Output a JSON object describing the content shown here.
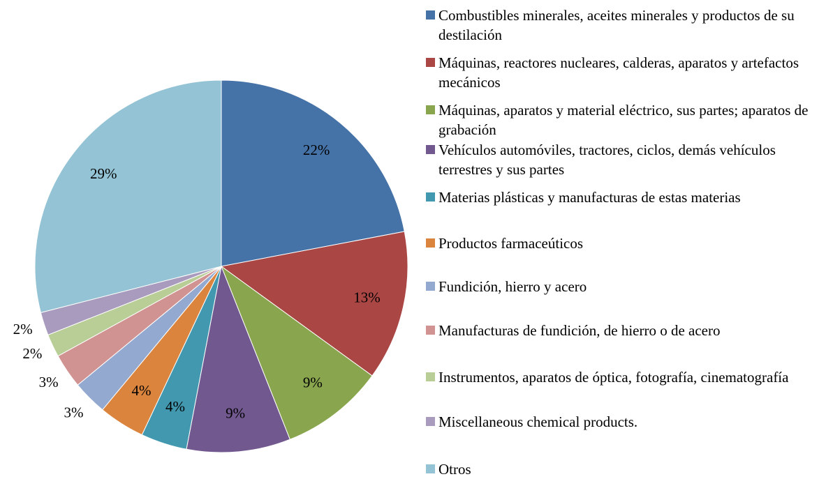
{
  "chart_data": {
    "type": "pie",
    "categories": [
      "Combustibles minerales, aceites minerales y productos de su destilación",
      "Máquinas,  reactores nucleares,  calderas,  aparatos y artefactos mecánicos",
      "Máquinas,  aparatos y material eléctrico, sus partes; aparatos de grabación",
      "Vehículos automóviles, tractores, ciclos, demás vehículos terrestres y sus partes",
      "Materias plásticas y manufacturas de estas materias",
      "Productos farmaceúticos",
      "Fundición, hierro y acero",
      "Manufacturas de fundición, de hierro o de acero",
      "Instrumentos, aparatos de óptica, fotografía, cinematografía",
      "Miscellaneous chemical products.",
      "Otros"
    ],
    "values": [
      22,
      13,
      9,
      9,
      4,
      4,
      3,
      3,
      2,
      2,
      29
    ],
    "value_labels": [
      "22%",
      "13%",
      "9%",
      "9%",
      "4%",
      "4%",
      "3%",
      "3%",
      "2%",
      "2%",
      "29%"
    ],
    "colors": [
      "#4572A7",
      "#AA4643",
      "#89A54E",
      "#71588F",
      "#4198AF",
      "#DB843D",
      "#93A9CF",
      "#D19392",
      "#B9CD96",
      "#A99BBD",
      "#93C3D4"
    ],
    "legend": "right"
  }
}
